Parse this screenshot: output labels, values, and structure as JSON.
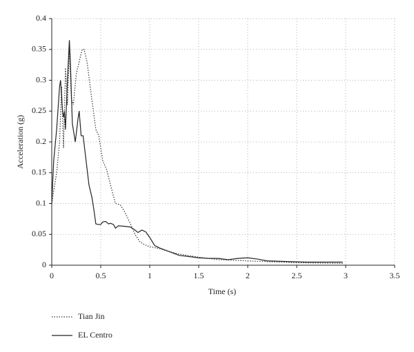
{
  "chart_data": {
    "type": "line",
    "xlabel": "Time (s)",
    "ylabel": "Acceleration (g)",
    "xlim": [
      0,
      3.5
    ],
    "xticks": [
      0,
      0.5,
      1,
      1.5,
      2,
      2.5,
      3,
      3.5
    ],
    "ylim": [
      0,
      0.4
    ],
    "yticks": [
      0,
      0.05,
      0.1,
      0.15,
      0.2,
      0.25,
      0.3,
      0.35,
      0.4
    ],
    "grid": true,
    "series": [
      {
        "name": "Tian Jin",
        "color": "#333333",
        "linestyle": "dotted",
        "x": [
          0,
          0.05,
          0.08,
          0.1,
          0.12,
          0.14,
          0.16,
          0.18,
          0.2,
          0.22,
          0.25,
          0.28,
          0.31,
          0.33,
          0.36,
          0.4,
          0.45,
          0.48,
          0.52,
          0.56,
          0.6,
          0.65,
          0.7,
          0.75,
          0.8,
          0.85,
          0.9,
          0.95,
          1.0,
          1.1,
          1.2,
          1.3,
          1.5,
          1.7,
          2.0,
          2.5,
          2.97
        ],
        "values": [
          0.1,
          0.15,
          0.2,
          0.29,
          0.19,
          0.32,
          0.26,
          0.35,
          0.27,
          0.26,
          0.31,
          0.33,
          0.35,
          0.35,
          0.33,
          0.28,
          0.22,
          0.21,
          0.17,
          0.155,
          0.13,
          0.1,
          0.098,
          0.085,
          0.068,
          0.05,
          0.038,
          0.033,
          0.03,
          0.027,
          0.022,
          0.018,
          0.013,
          0.009,
          0.007,
          0.004,
          0.003
        ]
      },
      {
        "name": "EL Centro",
        "color": "#222222",
        "linestyle": "solid",
        "x": [
          0,
          0.02,
          0.05,
          0.08,
          0.09,
          0.11,
          0.12,
          0.13,
          0.14,
          0.16,
          0.18,
          0.19,
          0.21,
          0.24,
          0.27,
          0.28,
          0.29,
          0.3,
          0.32,
          0.35,
          0.38,
          0.41,
          0.43,
          0.45,
          0.48,
          0.5,
          0.52,
          0.55,
          0.58,
          0.6,
          0.63,
          0.65,
          0.68,
          0.75,
          0.8,
          0.85,
          0.88,
          0.92,
          0.96,
          1.0,
          1.05,
          1.1,
          1.2,
          1.3,
          1.5,
          1.6,
          1.7,
          1.8,
          1.9,
          2.0,
          2.1,
          2.2,
          2.4,
          2.6,
          2.8,
          2.97
        ],
        "values": [
          0.1,
          0.17,
          0.22,
          0.29,
          0.3,
          0.25,
          0.24,
          0.25,
          0.22,
          0.3,
          0.365,
          0.33,
          0.23,
          0.2,
          0.24,
          0.25,
          0.23,
          0.21,
          0.21,
          0.17,
          0.13,
          0.11,
          0.09,
          0.067,
          0.066,
          0.066,
          0.07,
          0.071,
          0.067,
          0.068,
          0.066,
          0.06,
          0.064,
          0.063,
          0.062,
          0.057,
          0.053,
          0.057,
          0.054,
          0.045,
          0.032,
          0.028,
          0.022,
          0.016,
          0.012,
          0.011,
          0.011,
          0.009,
          0.011,
          0.012,
          0.01,
          0.007,
          0.006,
          0.005,
          0.005,
          0.005
        ]
      }
    ]
  }
}
